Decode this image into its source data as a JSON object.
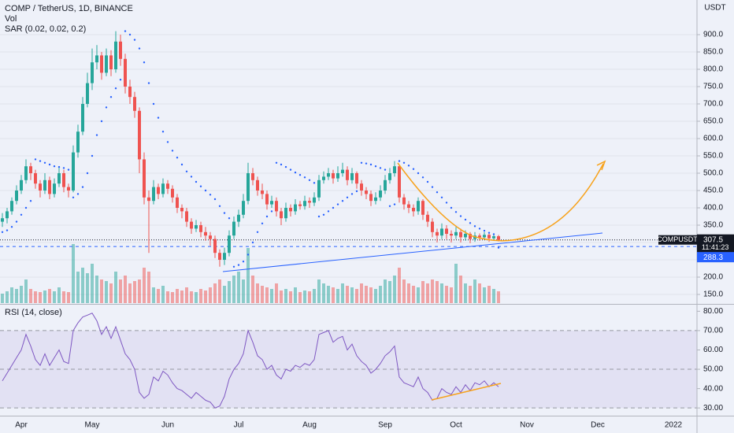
{
  "chart_data": {
    "type": "candlestick",
    "title": "COMP / TetherUS, 1D, BINANCE",
    "y_unit": "USDT",
    "symbol": "COMPUSDT",
    "countdown": "11:41:23",
    "level": 288.3,
    "up_color": "#26a69a",
    "down_color": "#ef5350",
    "grid": true,
    "ylim": [
      125,
      1000
    ],
    "yticks": [
      {
        "value": 150,
        "label": "150.0"
      },
      {
        "value": 200,
        "label": "200.0"
      },
      {
        "value": 250,
        "label": "250.0"
      },
      {
        "value": 300,
        "label": "300.0"
      },
      {
        "value": 350,
        "label": "350.0"
      },
      {
        "value": 400,
        "label": "400.0"
      },
      {
        "value": 450,
        "label": "450.0"
      },
      {
        "value": 500,
        "label": "500.0"
      },
      {
        "value": 550,
        "label": "550.0"
      },
      {
        "value": 600,
        "label": "600.0"
      },
      {
        "value": 650,
        "label": "650.0"
      },
      {
        "value": 700,
        "label": "700.0"
      },
      {
        "value": 750,
        "label": "750.0"
      },
      {
        "value": 800,
        "label": "800.0"
      },
      {
        "value": 850,
        "label": "850.0"
      },
      {
        "value": 900,
        "label": "900.0"
      }
    ],
    "categories": [
      null,
      null,
      null,
      null,
      "Apr",
      null,
      null,
      null,
      null,
      null,
      null,
      null,
      null,
      null,
      null,
      null,
      null,
      null,
      null,
      "May",
      null,
      null,
      null,
      null,
      null,
      null,
      null,
      null,
      null,
      null,
      null,
      null,
      null,
      null,
      null,
      "Jun",
      null,
      null,
      null,
      null,
      null,
      null,
      null,
      null,
      null,
      null,
      null,
      null,
      null,
      null,
      "Jul",
      null,
      null,
      null,
      null,
      null,
      null,
      null,
      null,
      null,
      null,
      null,
      null,
      null,
      null,
      "Aug",
      null,
      null,
      null,
      null,
      null,
      null,
      null,
      null,
      null,
      null,
      null,
      null,
      null,
      null,
      null,
      "Sep",
      null,
      null,
      null,
      null,
      null,
      null,
      null,
      null,
      null,
      null,
      null,
      null,
      null,
      null,
      "Oct",
      null,
      null,
      null,
      null,
      null,
      null,
      null,
      null,
      null,
      null,
      null,
      null,
      null,
      null,
      "Nov",
      null,
      null,
      null,
      null,
      null,
      null,
      null,
      null,
      null,
      null,
      null,
      null,
      null,
      null,
      "Dec",
      null,
      null,
      null,
      null,
      null,
      null,
      null,
      null,
      null,
      null,
      null,
      null,
      null,
      null,
      null,
      "2022",
      null,
      null,
      null,
      null
    ],
    "ohlc": [
      [
        360,
        385,
        345,
        370
      ],
      [
        370,
        400,
        355,
        390
      ],
      [
        390,
        430,
        380,
        420
      ],
      [
        420,
        465,
        410,
        450
      ],
      [
        450,
        495,
        440,
        480
      ],
      [
        480,
        540,
        470,
        520
      ],
      [
        520,
        530,
        480,
        500
      ],
      [
        500,
        510,
        455,
        470
      ],
      [
        470,
        480,
        430,
        450
      ],
      [
        450,
        500,
        440,
        480
      ],
      [
        480,
        490,
        425,
        440
      ],
      [
        440,
        485,
        430,
        470
      ],
      [
        470,
        520,
        460,
        500
      ],
      [
        500,
        510,
        445,
        460
      ],
      [
        460,
        470,
        430,
        450
      ],
      [
        450,
        580,
        445,
        560
      ],
      [
        560,
        640,
        545,
        620
      ],
      [
        620,
        720,
        610,
        700
      ],
      [
        700,
        790,
        690,
        760
      ],
      [
        760,
        860,
        740,
        820
      ],
      [
        820,
        870,
        800,
        840
      ],
      [
        840,
        850,
        770,
        790
      ],
      [
        790,
        860,
        780,
        840
      ],
      [
        840,
        855,
        780,
        800
      ],
      [
        800,
        910,
        790,
        880
      ],
      [
        880,
        900,
        810,
        830
      ],
      [
        830,
        845,
        730,
        750
      ],
      [
        750,
        770,
        700,
        720
      ],
      [
        720,
        735,
        660,
        680
      ],
      [
        680,
        690,
        500,
        540
      ],
      [
        540,
        560,
        410,
        430
      ],
      [
        430,
        450,
        270,
        420
      ],
      [
        420,
        480,
        410,
        460
      ],
      [
        460,
        470,
        425,
        440
      ],
      [
        440,
        485,
        430,
        470
      ],
      [
        470,
        480,
        440,
        455
      ],
      [
        455,
        465,
        415,
        430
      ],
      [
        430,
        440,
        385,
        400
      ],
      [
        400,
        410,
        370,
        390
      ],
      [
        390,
        400,
        345,
        360
      ],
      [
        360,
        370,
        325,
        340
      ],
      [
        340,
        365,
        330,
        350
      ],
      [
        350,
        360,
        315,
        330
      ],
      [
        330,
        345,
        305,
        320
      ],
      [
        320,
        330,
        290,
        310
      ],
      [
        310,
        320,
        255,
        270
      ],
      [
        270,
        280,
        230,
        250
      ],
      [
        250,
        285,
        235,
        270
      ],
      [
        270,
        335,
        260,
        320
      ],
      [
        320,
        375,
        310,
        360
      ],
      [
        360,
        395,
        345,
        380
      ],
      [
        380,
        440,
        370,
        420
      ],
      [
        420,
        530,
        410,
        500
      ],
      [
        500,
        515,
        465,
        480
      ],
      [
        480,
        490,
        435,
        450
      ],
      [
        450,
        470,
        425,
        440
      ],
      [
        440,
        450,
        395,
        410
      ],
      [
        410,
        435,
        400,
        420
      ],
      [
        420,
        430,
        375,
        390
      ],
      [
        390,
        400,
        350,
        370
      ],
      [
        370,
        415,
        360,
        400
      ],
      [
        400,
        410,
        375,
        390
      ],
      [
        390,
        425,
        380,
        410
      ],
      [
        410,
        420,
        395,
        405
      ],
      [
        405,
        435,
        395,
        420
      ],
      [
        420,
        430,
        400,
        415
      ],
      [
        415,
        445,
        405,
        430
      ],
      [
        430,
        495,
        420,
        480
      ],
      [
        480,
        505,
        470,
        490
      ],
      [
        490,
        515,
        480,
        500
      ],
      [
        500,
        510,
        470,
        485
      ],
      [
        485,
        520,
        475,
        500
      ],
      [
        500,
        530,
        490,
        510
      ],
      [
        510,
        520,
        465,
        480
      ],
      [
        480,
        515,
        470,
        500
      ],
      [
        500,
        505,
        455,
        470
      ],
      [
        470,
        480,
        435,
        450
      ],
      [
        450,
        460,
        425,
        440
      ],
      [
        440,
        450,
        405,
        420
      ],
      [
        420,
        445,
        410,
        430
      ],
      [
        430,
        465,
        420,
        450
      ],
      [
        450,
        495,
        440,
        480
      ],
      [
        480,
        515,
        470,
        500
      ],
      [
        500,
        535,
        490,
        520
      ],
      [
        520,
        525,
        415,
        430
      ],
      [
        430,
        440,
        395,
        410
      ],
      [
        410,
        420,
        385,
        400
      ],
      [
        400,
        410,
        375,
        390
      ],
      [
        390,
        430,
        380,
        420
      ],
      [
        420,
        425,
        365,
        380
      ],
      [
        380,
        390,
        345,
        360
      ],
      [
        360,
        370,
        315,
        330
      ],
      [
        330,
        340,
        300,
        320
      ],
      [
        320,
        355,
        310,
        340
      ],
      [
        340,
        350,
        310,
        325
      ],
      [
        325,
        335,
        300,
        320
      ],
      [
        320,
        345,
        310,
        330
      ],
      [
        330,
        340,
        300,
        315
      ],
      [
        315,
        335,
        305,
        325
      ],
      [
        325,
        330,
        298,
        310
      ],
      [
        310,
        330,
        302,
        320
      ],
      [
        320,
        326,
        305,
        315
      ],
      [
        315,
        330,
        308,
        322
      ],
      [
        322,
        328,
        302,
        312
      ],
      [
        312,
        325,
        305,
        318
      ],
      [
        318,
        322,
        303,
        307.5
      ]
    ],
    "volume": {
      "name": "Vol",
      "values": [
        12,
        15,
        20,
        18,
        22,
        30,
        18,
        15,
        14,
        16,
        18,
        15,
        20,
        15,
        14,
        75,
        40,
        45,
        38,
        50,
        35,
        30,
        28,
        25,
        40,
        30,
        35,
        25,
        28,
        30,
        45,
        40,
        20,
        18,
        22,
        15,
        14,
        18,
        16,
        20,
        15,
        14,
        18,
        16,
        20,
        25,
        30,
        22,
        28,
        35,
        40,
        30,
        70,
        35,
        25,
        22,
        20,
        18,
        25,
        16,
        18,
        15,
        20,
        14,
        16,
        15,
        18,
        30,
        25,
        22,
        20,
        18,
        25,
        22,
        20,
        18,
        25,
        22,
        20,
        18,
        22,
        30,
        28,
        35,
        45,
        30,
        25,
        22,
        20,
        28,
        25,
        30,
        28,
        25,
        22,
        20,
        50,
        35,
        25,
        22,
        30,
        25,
        20,
        22,
        18,
        15
      ]
    },
    "sar": {
      "name": "SAR (0.02, 0.02, 0.2)",
      "color": "#2962ff",
      "values": [
        330,
        335,
        345,
        360,
        380,
        400,
        420,
        540,
        535,
        530,
        525,
        520,
        518,
        515,
        510,
        430,
        440,
        460,
        500,
        550,
        610,
        650,
        690,
        720,
        745,
        770,
        910,
        900,
        885,
        860,
        820,
        760,
        700,
        660,
        620,
        590,
        565,
        545,
        525,
        505,
        490,
        475,
        462,
        450,
        438,
        425,
        405,
        385,
        370,
        230,
        235,
        245,
        265,
        300,
        330,
        355,
        375,
        390,
        530,
        525,
        518,
        510,
        502,
        495,
        488,
        480,
        472,
        375,
        380,
        390,
        400,
        410,
        420,
        430,
        440,
        448,
        530,
        528,
        525,
        520,
        515,
        510,
        405,
        410,
        535,
        530,
        522,
        512,
        500,
        488,
        475,
        460,
        445,
        430,
        415,
        400,
        388,
        376,
        366,
        356,
        347,
        340,
        334,
        328,
        324,
        285
      ]
    },
    "rsi": {
      "name": "RSI (14, close)",
      "color": "#7e57c2",
      "ylim": [
        26,
        83
      ],
      "levels": [
        30,
        50,
        70
      ],
      "yticks": [
        {
          "value": 30,
          "label": "30.00"
        },
        {
          "value": 40,
          "label": "40.00"
        },
        {
          "value": 50,
          "label": "50.00"
        },
        {
          "value": 60,
          "label": "60.00"
        },
        {
          "value": 70,
          "label": "70.00"
        },
        {
          "value": 80,
          "label": "80.00"
        }
      ],
      "values": [
        44,
        48,
        52,
        56,
        60,
        68,
        62,
        55,
        52,
        58,
        52,
        56,
        60,
        54,
        53,
        70,
        74,
        77,
        78,
        79,
        75,
        68,
        72,
        66,
        72,
        65,
        58,
        55,
        50,
        38,
        35,
        37,
        46,
        44,
        49,
        47,
        43,
        40,
        39,
        37,
        35,
        38,
        36,
        34,
        33,
        30,
        31,
        36,
        45,
        50,
        53,
        58,
        70,
        64,
        57,
        55,
        50,
        52,
        47,
        45,
        50,
        49,
        52,
        51,
        53,
        52,
        55,
        68,
        69,
        70,
        64,
        66,
        67,
        60,
        63,
        57,
        54,
        52,
        48,
        50,
        53,
        57,
        59,
        62,
        46,
        43,
        42,
        41,
        46,
        40,
        38,
        34,
        35,
        40,
        38,
        37,
        41,
        38,
        42,
        39,
        43,
        42,
        44,
        41,
        43,
        41
      ]
    }
  }
}
